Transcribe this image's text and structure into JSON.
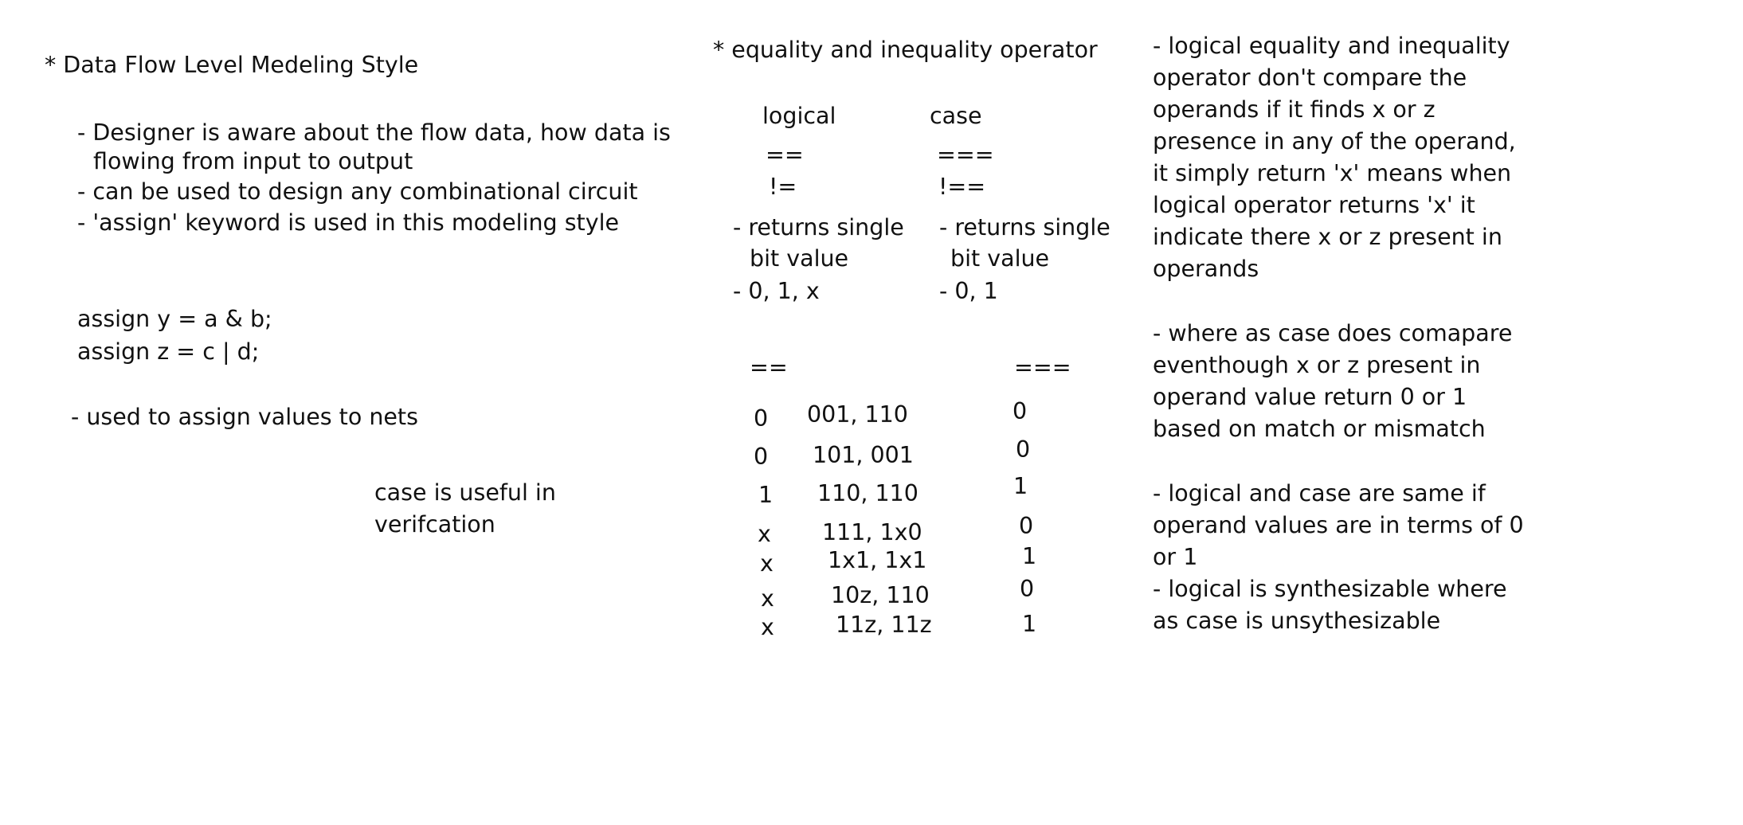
{
  "left": {
    "heading": "* Data Flow Level Medeling Style",
    "bullet1_line1": "- Designer is aware about the flow data, how data is",
    "bullet1_line2": "flowing from input to output",
    "bullet2": "- can be used to design any combinational circuit",
    "bullet3": "- 'assign' keyword is used in this modeling style",
    "code_line1": "assign y = a & b;",
    "code_line2": "assign z  = c | d;",
    "note": "- used to assign values to nets",
    "case_note_line1": "case is useful in",
    "case_note_line2": "verifcation"
  },
  "middle": {
    "heading": "* equality and inequality operator",
    "logical": {
      "label": "logical",
      "eq": "==",
      "neq": "!=",
      "returns_line1": "- returns single",
      "returns_line2": "bit value",
      "values": "- 0, 1, x"
    },
    "case": {
      "label": "case",
      "eq": "===",
      "neq": "!==",
      "returns_line1": "- returns single",
      "returns_line2": "bit value",
      "values": "- 0, 1"
    },
    "table": {
      "logical_header": "==",
      "case_header": "===",
      "rows": [
        {
          "logical": "0",
          "operands": "001, 110",
          "case": "0"
        },
        {
          "logical": "0",
          "operands": "101, 001",
          "case": "0"
        },
        {
          "logical": "1",
          "operands": "110, 110",
          "case": "1"
        },
        {
          "logical": "x",
          "operands": "111, 1x0",
          "case": "0"
        },
        {
          "logical": "x",
          "operands": "1x1, 1x1",
          "case": "1"
        },
        {
          "logical": "x",
          "operands": "10z, 110",
          "case": "0"
        },
        {
          "logical": "x",
          "operands": "11z, 11z",
          "case": "1"
        }
      ]
    }
  },
  "right": {
    "para1": [
      "- logical equality and inequality",
      "operator don't compare the",
      "operands if it finds x or z",
      "presence in any of the operand,",
      "it simply return 'x' means when",
      "logical operator returns 'x' it",
      "indicate there x or z present in",
      "operands"
    ],
    "para2": [
      "- where as case does comapare",
      "eventhough x or z present in",
      "operand value return 0 or 1",
      "based on match or mismatch"
    ],
    "para3": [
      "- logical and case are same if",
      "operand values are in terms of 0",
      "or 1"
    ],
    "para4": [
      "- logical is synthesizable where",
      "as case is unsythesizable"
    ]
  }
}
